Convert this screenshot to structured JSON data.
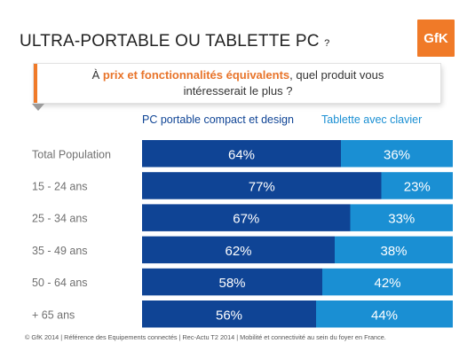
{
  "header": {
    "title": "ULTRA-PORTABLE OU TABLETTE PC",
    "title_suffix": "?",
    "logo_text": "GfK"
  },
  "question": {
    "prefix": "À ",
    "highlight": "prix et fonctionnalités équivalents",
    "rest": ", quel produit vous",
    "line2": "intéresserait le plus ?"
  },
  "footer": "© GfK 2014 | Référence des Equipements connectés | Rec-Actu T2 2014 | Mobilité et connectivité au sein du foyer en France.",
  "colors": {
    "series1": "#0f4495",
    "series2": "#1a8fd3",
    "accent": "#f07a28",
    "label": "#707070"
  },
  "chart_data": {
    "type": "bar",
    "orientation": "horizontal",
    "stacked": "100%",
    "categories": [
      "Total Population",
      "15 - 24 ans",
      "25 - 34 ans",
      "35 - 49 ans",
      "50 - 64 ans",
      "+ 65 ans"
    ],
    "series": [
      {
        "name": "PC portable compact et design",
        "values": [
          64,
          77,
          67,
          62,
          58,
          56
        ]
      },
      {
        "name": "Tablette avec clavier",
        "values": [
          36,
          23,
          33,
          38,
          42,
          44
        ]
      }
    ],
    "unit": "%",
    "legend_position": "top",
    "grid": false
  }
}
